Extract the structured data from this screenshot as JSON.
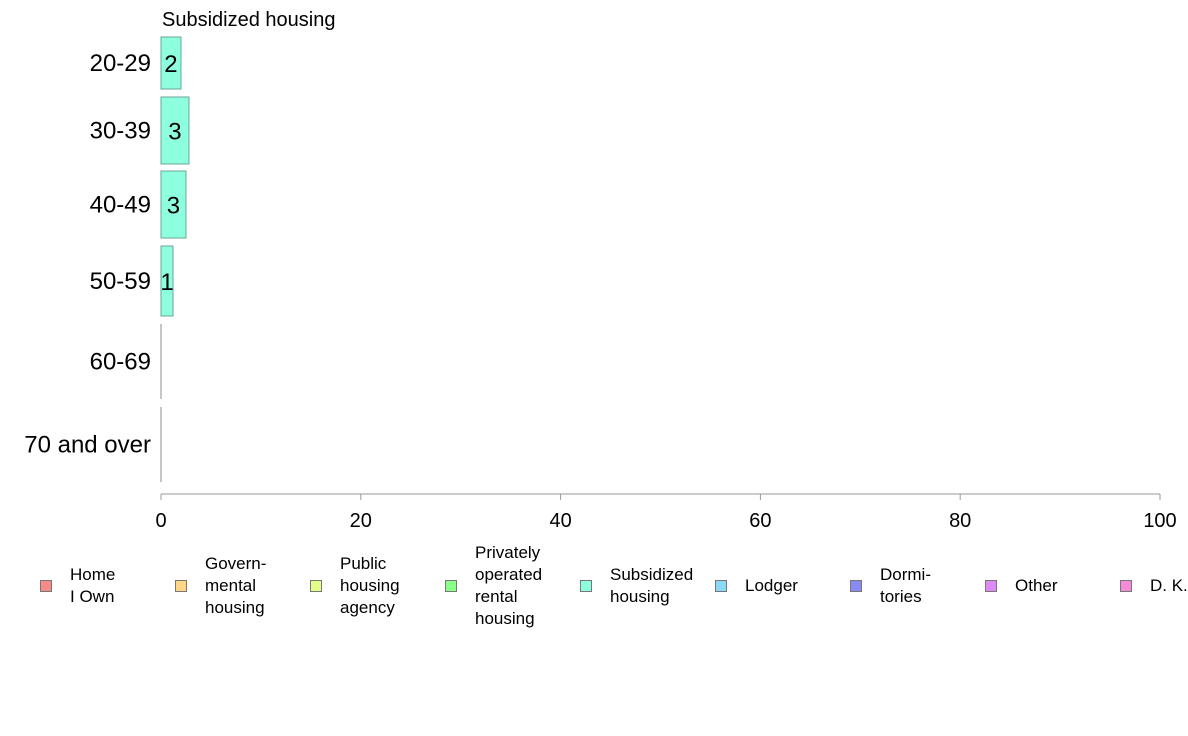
{
  "chart_data": {
    "type": "bar",
    "orientation": "horizontal",
    "title": "Subsidized housing",
    "categories": [
      "20-29",
      "30-39",
      "40-49",
      "50-59",
      "60-69",
      "70 and over"
    ],
    "series": [
      {
        "name": "Subsidized housing",
        "values": [
          2,
          2.8,
          2.5,
          1.2,
          0,
          0
        ],
        "labels": [
          "2",
          "3",
          "3",
          "1",
          "",
          ""
        ],
        "color": "#8dffdf"
      }
    ],
    "xlim": [
      0,
      100
    ],
    "xticks": [
      "0",
      "20",
      "40",
      "60",
      "80",
      "100"
    ],
    "grid": false,
    "legend": {
      "placement": "bottom",
      "items": [
        {
          "label": "Home\nI Own",
          "color": "#f58a88"
        },
        {
          "label": "Govern-\nmental\n housing",
          "color": "#ffd586"
        },
        {
          "label": "Public\nhousing\nagency",
          "color": "#e3ff8a"
        },
        {
          "label": "Privately\noperated\nrental\nhousing",
          "color": "#8cff8a"
        },
        {
          "label": "Subsidized\n housing",
          "color": "#8dffdf"
        },
        {
          "label": "Lodger",
          "color": "#8ad9f5"
        },
        {
          "label": "Dormi-\ntories",
          "color": "#8a8af5"
        },
        {
          "label": "Other",
          "color": "#dd8af5"
        },
        {
          "label": "D. K.",
          "color": "#f58ad7"
        }
      ]
    }
  }
}
